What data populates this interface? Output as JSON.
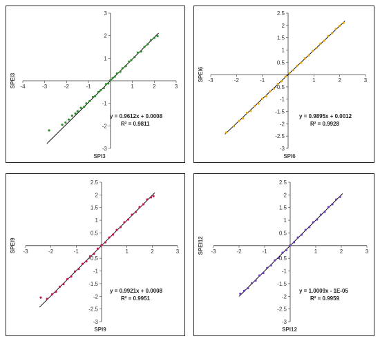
{
  "chart_data": [
    {
      "type": "scatter",
      "xlabel": "SPI3",
      "ylabel": "SPEI3",
      "xlim": [
        -4,
        3
      ],
      "ylim": [
        -3,
        3
      ],
      "x_ticks": [
        "-4",
        "-3",
        "-2",
        "-1",
        "0",
        "1",
        "2",
        "3"
      ],
      "y_ticks": [
        "-3",
        "-2",
        "-1",
        "0",
        "1",
        "2",
        "3"
      ],
      "color": "#2e8b2e",
      "equation": "y = 0.9612x + 0.0008",
      "r2": "R² = 0.9811",
      "fit": {
        "slope": 0.9612,
        "intercept": 0.0008,
        "x_range": [
          -2.9,
          2.2
        ]
      },
      "x": [
        -2.8,
        -2.2,
        -2.05,
        -1.9,
        -1.75,
        -1.6,
        -1.5,
        -1.35,
        -1.2,
        -1.1,
        -0.95,
        -0.8,
        -0.7,
        -0.55,
        -0.45,
        -0.3,
        -0.2,
        -0.1,
        0.0,
        0.1,
        0.2,
        0.3,
        0.45,
        0.55,
        0.7,
        0.85,
        0.95,
        1.1,
        1.25,
        1.4,
        1.55,
        1.7,
        1.85,
        2.0,
        2.15
      ],
      "y": [
        -2.2,
        -1.95,
        -1.85,
        -1.72,
        -1.55,
        -1.45,
        -1.35,
        -1.2,
        -1.15,
        -1.0,
        -0.9,
        -0.72,
        -0.68,
        -0.5,
        -0.42,
        -0.32,
        -0.15,
        -0.12,
        0.02,
        0.12,
        0.18,
        0.33,
        0.4,
        0.55,
        0.65,
        0.85,
        0.92,
        1.05,
        1.25,
        1.3,
        1.5,
        1.62,
        1.8,
        1.9,
        1.98
      ]
    },
    {
      "type": "scatter",
      "xlabel": "SPI6",
      "ylabel": "SPEI6",
      "xlim": [
        -3,
        3
      ],
      "ylim": [
        -3,
        2.5
      ],
      "x_ticks": [
        "-3",
        "-2",
        "-1",
        "0",
        "1",
        "2",
        "3"
      ],
      "y_ticks": [
        "-3",
        "-2.5",
        "-2",
        "-1.5",
        "-1",
        "-0.5",
        "0",
        "0.5",
        "1",
        "1.5",
        "2",
        "2.5"
      ],
      "color": "#e6a817",
      "equation": "y = 0.9895x + 0.0012",
      "r2": "R² = 0.9928",
      "fit": {
        "slope": 0.9895,
        "intercept": 0.0012,
        "x_range": [
          -2.45,
          2.2
        ]
      },
      "x": [
        -2.4,
        -2.1,
        -1.9,
        -1.75,
        -1.6,
        -1.45,
        -1.3,
        -1.15,
        -1.0,
        -0.85,
        -0.7,
        -0.55,
        -0.4,
        -0.25,
        -0.1,
        0.05,
        0.2,
        0.35,
        0.5,
        0.65,
        0.8,
        0.95,
        1.1,
        1.25,
        1.4,
        1.55,
        1.7,
        1.85,
        2.0,
        2.15
      ],
      "y": [
        -2.35,
        -2.1,
        -1.88,
        -1.78,
        -1.55,
        -1.48,
        -1.28,
        -1.18,
        -0.98,
        -0.88,
        -0.68,
        -0.57,
        -0.38,
        -0.27,
        -0.08,
        0.06,
        0.18,
        0.36,
        0.48,
        0.66,
        0.78,
        0.96,
        1.08,
        1.26,
        1.38,
        1.56,
        1.68,
        1.86,
        1.98,
        2.1
      ]
    },
    {
      "type": "scatter",
      "xlabel": "SPI9",
      "ylabel": "SPEI9",
      "xlim": [
        -3,
        3
      ],
      "ylim": [
        -3,
        2.5
      ],
      "x_ticks": [
        "-3",
        "-2",
        "-1",
        "0",
        "1",
        "2",
        "3"
      ],
      "y_ticks": [
        "-3",
        "-2.5",
        "-2",
        "-1.5",
        "-1",
        "-0.5",
        "0",
        "0.5",
        "1",
        "1.5",
        "2",
        "2.5"
      ],
      "color": "#c2185b",
      "equation": "y = 0.9921x + 0.0008",
      "r2": "R² = 0.9951",
      "fit": {
        "slope": 0.9921,
        "intercept": 0.0008,
        "x_range": [
          -2.45,
          2.1
        ]
      },
      "x": [
        -2.4,
        -2.15,
        -1.95,
        -1.8,
        -1.65,
        -1.5,
        -1.35,
        -1.2,
        -1.05,
        -0.9,
        -0.75,
        -0.6,
        -0.45,
        -0.3,
        -0.15,
        0.0,
        0.15,
        0.3,
        0.45,
        0.6,
        0.75,
        0.9,
        1.05,
        1.2,
        1.35,
        1.5,
        1.65,
        1.8,
        1.95,
        2.05
      ],
      "y": [
        -2.05,
        -2.1,
        -1.92,
        -1.82,
        -1.62,
        -1.52,
        -1.32,
        -1.22,
        -1.02,
        -0.92,
        -0.72,
        -0.62,
        -0.42,
        -0.32,
        -0.12,
        0.02,
        0.13,
        0.32,
        0.43,
        0.62,
        0.73,
        0.92,
        1.03,
        1.22,
        1.33,
        1.52,
        1.63,
        1.82,
        1.9,
        1.95
      ]
    },
    {
      "type": "scatter",
      "xlabel": "SPI12",
      "ylabel": "SPEI12",
      "xlim": [
        -3,
        3
      ],
      "ylim": [
        -3,
        2.5
      ],
      "x_ticks": [
        "-3",
        "-2",
        "-1",
        "0",
        "1",
        "2",
        "3"
      ],
      "y_ticks": [
        "-3",
        "-2.5",
        "-2",
        "-1.5",
        "-1",
        "-0.5",
        "0",
        "0.5",
        "1",
        "1.5",
        "2",
        "2.5"
      ],
      "color": "#6a3fb5",
      "equation": "y = 1.0009x - 1E-05",
      "r2": "R² = 0.9959",
      "fit": {
        "slope": 1.0009,
        "intercept": -1e-05,
        "x_range": [
          -2.0,
          2.05
        ]
      },
      "x": [
        -1.95,
        -1.8,
        -1.65,
        -1.5,
        -1.35,
        -1.2,
        -1.05,
        -0.9,
        -0.75,
        -0.6,
        -0.45,
        -0.3,
        -0.15,
        0.0,
        0.15,
        0.3,
        0.45,
        0.6,
        0.75,
        0.9,
        1.05,
        1.2,
        1.35,
        1.5,
        1.65,
        1.8,
        1.95
      ],
      "y": [
        -1.9,
        -1.78,
        -1.68,
        -1.48,
        -1.38,
        -1.18,
        -1.08,
        -0.88,
        -0.78,
        -0.58,
        -0.48,
        -0.28,
        -0.18,
        0.01,
        0.13,
        0.32,
        0.43,
        0.62,
        0.73,
        0.92,
        1.03,
        1.22,
        1.33,
        1.52,
        1.63,
        1.82,
        1.92
      ]
    }
  ]
}
